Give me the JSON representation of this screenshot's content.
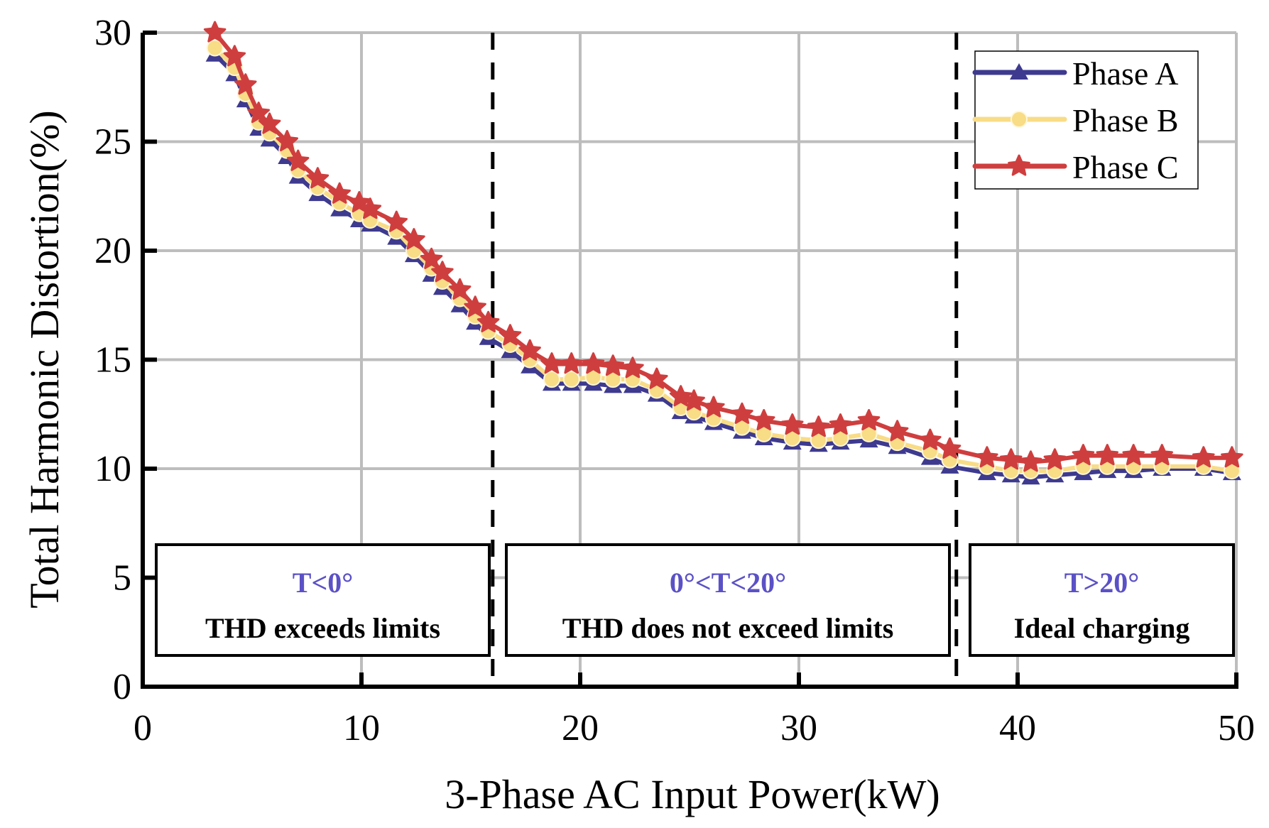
{
  "chart_data": {
    "type": "line",
    "xlabel": "3-Phase AC Input Power(kW)",
    "ylabel": "Total Harmonic Distortion(%)",
    "xlim": [
      0,
      50
    ],
    "ylim": [
      0,
      30
    ],
    "xticks": [
      "0",
      "10",
      "20",
      "30",
      "40",
      "50"
    ],
    "yticks": [
      "0",
      "5",
      "10",
      "15",
      "20",
      "25",
      "30"
    ],
    "grid": true,
    "legend_position": "top-right",
    "x": [
      3.3,
      4.2,
      4.7,
      5.3,
      5.8,
      6.6,
      7.1,
      8.0,
      9.0,
      9.9,
      10.4,
      11.6,
      12.4,
      13.2,
      13.7,
      14.5,
      15.2,
      15.8,
      16.8,
      17.7,
      18.7,
      19.6,
      20.6,
      21.5,
      22.4,
      23.5,
      24.6,
      25.2,
      26.1,
      27.4,
      28.4,
      29.7,
      30.9,
      31.9,
      33.2,
      34.5,
      36.0,
      36.9,
      38.6,
      39.7,
      40.6,
      41.7,
      43.0,
      44.1,
      45.3,
      46.6,
      48.5,
      49.8
    ],
    "series": [
      {
        "name": "Phase A",
        "color": "#3e3a8f",
        "marker": "triangle",
        "values": [
          29.0,
          28.1,
          26.9,
          25.6,
          25.1,
          24.3,
          23.4,
          22.6,
          21.9,
          21.4,
          21.2,
          20.6,
          19.8,
          18.9,
          18.3,
          17.5,
          16.7,
          16.0,
          15.4,
          14.7,
          13.9,
          13.9,
          13.9,
          13.8,
          13.8,
          13.4,
          12.6,
          12.4,
          12.1,
          11.7,
          11.4,
          11.2,
          11.1,
          11.2,
          11.3,
          11.0,
          10.5,
          10.1,
          9.8,
          9.7,
          9.6,
          9.7,
          9.8,
          9.9,
          9.9,
          10.0,
          10.0,
          9.8
        ]
      },
      {
        "name": "Phase B",
        "color": "#f8dc86",
        "marker": "circle",
        "values": [
          29.3,
          28.4,
          27.2,
          25.9,
          25.4,
          24.6,
          23.7,
          22.9,
          22.2,
          21.7,
          21.4,
          20.9,
          20.0,
          19.2,
          18.6,
          17.8,
          17.0,
          16.3,
          15.7,
          15.0,
          14.1,
          14.1,
          14.2,
          14.1,
          14.1,
          13.6,
          12.8,
          12.6,
          12.3,
          11.9,
          11.6,
          11.4,
          11.3,
          11.4,
          11.6,
          11.2,
          10.8,
          10.4,
          10.1,
          9.9,
          9.9,
          9.9,
          10.1,
          10.1,
          10.1,
          10.1,
          10.1,
          9.9
        ]
      },
      {
        "name": "Phase C",
        "color": "#cf3e3e",
        "marker": "star",
        "values": [
          30.0,
          28.9,
          27.6,
          26.3,
          25.8,
          25.0,
          24.1,
          23.3,
          22.6,
          22.2,
          21.9,
          21.3,
          20.5,
          19.6,
          19.0,
          18.2,
          17.4,
          16.7,
          16.1,
          15.4,
          14.8,
          14.8,
          14.8,
          14.7,
          14.6,
          14.1,
          13.3,
          13.1,
          12.8,
          12.5,
          12.2,
          12.0,
          11.9,
          12.0,
          12.2,
          11.7,
          11.3,
          10.9,
          10.5,
          10.4,
          10.3,
          10.4,
          10.6,
          10.6,
          10.6,
          10.6,
          10.5,
          10.5
        ]
      }
    ],
    "vlines": [
      16,
      37.2
    ],
    "annotations": [
      {
        "title": "T<0°",
        "text": "THD exceeds limits"
      },
      {
        "title": "0°<T<20°",
        "text": "THD does not exceed limits"
      },
      {
        "title": "T>20°",
        "text": "Ideal charging"
      }
    ],
    "annotation_title_color": "#5b51c6"
  }
}
